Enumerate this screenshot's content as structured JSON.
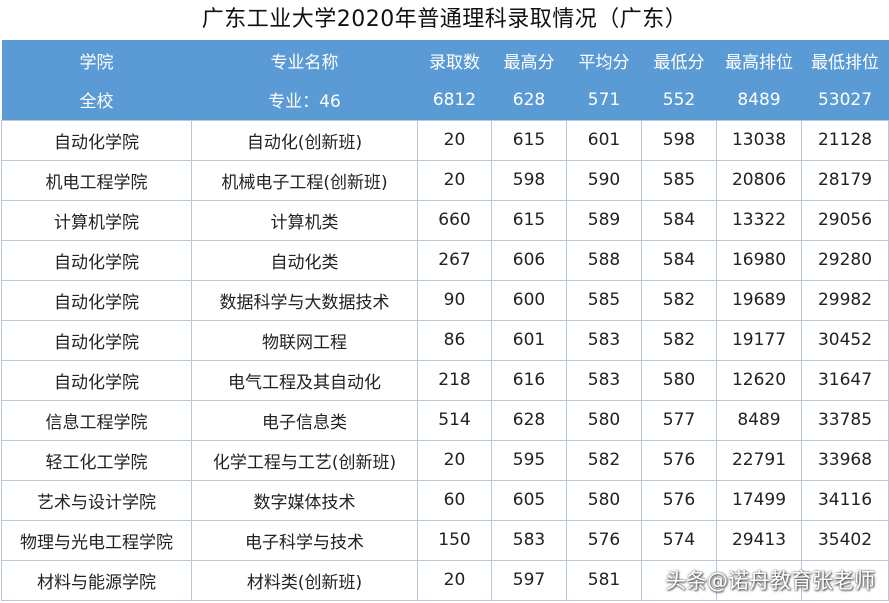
{
  "title": "广东工业大学2020年普通理科录取情况（广东）",
  "headers": [
    "学院",
    "专业名称",
    "录取数",
    "最高分",
    "平均分",
    "最低分",
    "最高排位",
    "最低排位"
  ],
  "summary": [
    "全校",
    "专业：46",
    "6812",
    "628",
    "571",
    "552",
    "8489",
    "53027"
  ],
  "rows": [
    [
      "自动化学院",
      "自动化(创新班)",
      "20",
      "615",
      "601",
      "598",
      "13038",
      "21128"
    ],
    [
      "机电工程学院",
      "机械电子工程(创新班)",
      "20",
      "598",
      "590",
      "585",
      "20806",
      "28179"
    ],
    [
      "计算机学院",
      "计算机类",
      "660",
      "615",
      "589",
      "584",
      "13322",
      "29056"
    ],
    [
      "自动化学院",
      "自动化类",
      "267",
      "606",
      "588",
      "584",
      "16980",
      "29280"
    ],
    [
      "自动化学院",
      "数据科学与大数据技术",
      "90",
      "600",
      "585",
      "582",
      "19689",
      "29982"
    ],
    [
      "自动化学院",
      "物联网工程",
      "86",
      "601",
      "583",
      "582",
      "19177",
      "30452"
    ],
    [
      "自动化学院",
      "电气工程及其自动化",
      "218",
      "616",
      "583",
      "580",
      "12620",
      "31647"
    ],
    [
      "信息工程学院",
      "电子信息类",
      "514",
      "628",
      "580",
      "577",
      "8489",
      "33785"
    ],
    [
      "轻工化工学院",
      "化学工程与工艺(创新班)",
      "20",
      "595",
      "582",
      "576",
      "22791",
      "33968"
    ],
    [
      "艺术与设计学院",
      "数字媒体技术",
      "60",
      "605",
      "580",
      "576",
      "17499",
      "34116"
    ],
    [
      "物理与光电工程学院",
      "电子科学与技术",
      "150",
      "583",
      "576",
      "574",
      "29413",
      "35402"
    ],
    [
      "材料与能源学院",
      "材料类(创新班)",
      "20",
      "597",
      "581",
      "",
      "",
      ""
    ]
  ],
  "watermark": "头条@诺舟教育张老师"
}
